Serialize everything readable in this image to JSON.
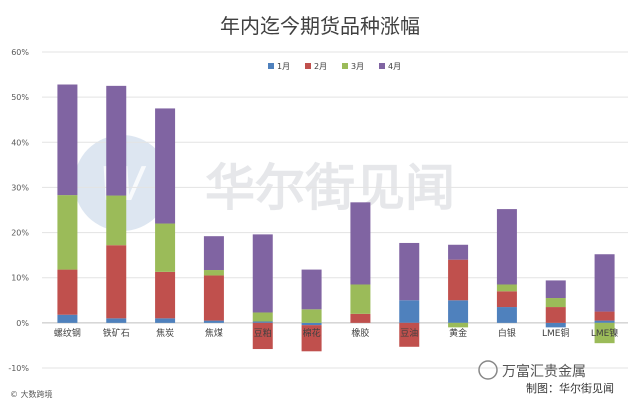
{
  "chart_data": {
    "type": "bar",
    "stacked": true,
    "title": "年内迄今期货品种涨幅",
    "categories": [
      "螺纹钢",
      "铁矿石",
      "焦炭",
      "焦煤",
      "豆粕",
      "棉花",
      "橡胶",
      "豆油",
      "黄金",
      "白银",
      "LME铜",
      "LME镍"
    ],
    "series": [
      {
        "name": "1月",
        "color": "#4f81bd",
        "values": [
          1.8,
          1.0,
          1.0,
          0.5,
          0.3,
          -0.5,
          0.0,
          5.0,
          5.0,
          3.5,
          -1.0,
          0.5
        ]
      },
      {
        "name": "2月",
        "color": "#c0504d",
        "values": [
          10.0,
          16.2,
          10.3,
          10.0,
          -5.8,
          -5.8,
          2.0,
          -5.3,
          9.0,
          3.5,
          3.5,
          2.0
        ]
      },
      {
        "name": "3月",
        "color": "#9bbb59",
        "values": [
          16.5,
          11.0,
          10.7,
          1.2,
          2.0,
          3.0,
          6.5,
          0.0,
          -1.0,
          1.5,
          2.0,
          -4.5
        ]
      },
      {
        "name": "4月",
        "color": "#8064a2",
        "values": [
          24.5,
          24.3,
          25.5,
          7.5,
          17.3,
          8.8,
          18.2,
          12.7,
          3.3,
          16.7,
          3.9,
          12.7
        ]
      }
    ],
    "ylim": [
      -10,
      60
    ],
    "yticks": [
      "-10%",
      "0%",
      "10%",
      "20%",
      "30%",
      "40%",
      "50%",
      "60%"
    ],
    "legend": "top-center",
    "grid": true
  },
  "watermark": {
    "text": "华尔街见闻",
    "logo_letter": "W"
  },
  "footer": {
    "credit": "制图：华尔街见闻",
    "brand": "万富汇贵金属",
    "source_stamp": "© 大数跨境"
  }
}
